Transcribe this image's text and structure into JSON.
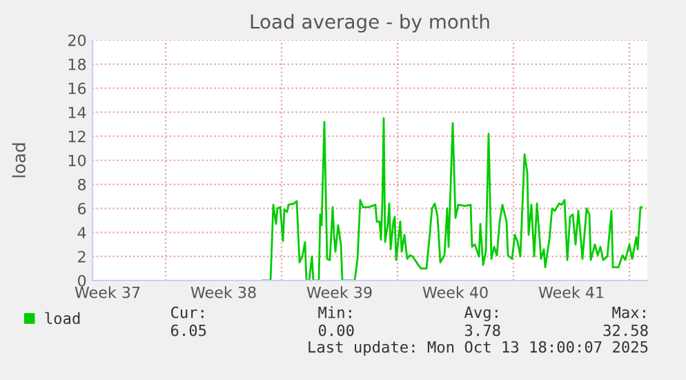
{
  "chart_data": {
    "type": "line",
    "title": "Load average - by month",
    "ylabel": "load",
    "x": [
      "2025-09-20T20:00",
      "2025-09-21T08:00",
      "2025-09-21T12:00",
      "2025-09-21T16:00",
      "2025-09-21T18:00",
      "2025-09-21T22:00",
      "2025-09-22T02:00",
      "2025-09-22T04:00",
      "2025-09-22T08:00",
      "2025-09-22T10:00",
      "2025-09-22T18:00",
      "2025-09-22T22:00",
      "2025-09-23T02:00",
      "2025-09-23T06:00",
      "2025-09-23T10:00",
      "2025-09-23T12:00",
      "2025-09-23T16:00",
      "2025-09-23T20:00",
      "2025-09-23T22:00",
      "2025-09-24T06:00",
      "2025-09-24T08:00",
      "2025-09-24T10:00",
      "2025-09-24T14:00",
      "2025-09-24T18:00",
      "2025-09-24T22:00",
      "2025-09-25T02:00",
      "2025-09-25T04:00",
      "2025-09-25T06:00",
      "2025-09-25T10:00",
      "2025-09-25T14:00",
      "2025-09-25T16:00",
      "2025-09-26T10:00",
      "2025-09-26T14:00",
      "2025-09-26T18:00",
      "2025-09-26T22:00",
      "2025-09-27T06:00",
      "2025-09-27T16:00",
      "2025-09-27T18:00",
      "2025-09-27T22:00",
      "2025-09-28T00:00",
      "2025-09-28T02:00",
      "2025-09-28T04:00",
      "2025-09-28T06:00",
      "2025-09-28T10:00",
      "2025-09-28T12:00",
      "2025-09-28T14:00",
      "2025-09-28T18:00",
      "2025-09-28T20:00",
      "2025-09-28T22:00",
      "2025-09-29T02:00",
      "2025-09-29T04:00",
      "2025-09-29T06:00",
      "2025-09-29T10:00",
      "2025-09-29T14:00",
      "2025-09-29T18:00",
      "2025-09-29T22:00",
      "2025-09-30T06:00",
      "2025-09-30T10:00",
      "2025-09-30T18:00",
      "2025-09-30T22:00",
      "2025-10-01T02:00",
      "2025-10-01T06:00",
      "2025-10-01T10:00",
      "2025-10-01T14:00",
      "2025-10-01T20:00",
      "2025-10-02T00:00",
      "2025-10-02T02:00",
      "2025-10-02T08:00",
      "2025-10-02T12:00",
      "2025-10-02T16:00",
      "2025-10-03T02:00",
      "2025-10-03T10:00",
      "2025-10-03T12:00",
      "2025-10-03T16:00",
      "2025-10-03T22:00",
      "2025-10-04T00:00",
      "2025-10-04T04:00",
      "2025-10-04T08:00",
      "2025-10-04T12:00",
      "2025-10-04T16:00",
      "2025-10-04T20:00",
      "2025-10-05T00:00",
      "2025-10-05T04:00",
      "2025-10-05T08:00",
      "2025-10-05T14:00",
      "2025-10-05T16:00",
      "2025-10-05T22:00",
      "2025-10-06T02:00",
      "2025-10-06T06:00",
      "2025-10-06T10:00",
      "2025-10-06T16:00",
      "2025-10-06T20:00",
      "2025-10-06T22:00",
      "2025-10-07T02:00",
      "2025-10-07T06:00",
      "2025-10-07T10:00",
      "2025-10-07T16:00",
      "2025-10-07T20:00",
      "2025-10-07T22:00",
      "2025-10-08T04:00",
      "2025-10-08T08:00",
      "2025-10-08T12:00",
      "2025-10-08T18:00",
      "2025-10-08T22:00",
      "2025-10-09T02:00",
      "2025-10-09T06:00",
      "2025-10-09T10:00",
      "2025-10-09T14:00",
      "2025-10-09T18:00",
      "2025-10-09T22:00",
      "2025-10-10T04:00",
      "2025-10-10T10:00",
      "2025-10-10T14:00",
      "2025-10-10T16:00",
      "2025-10-10T22:00",
      "2025-10-11T02:00",
      "2025-10-11T06:00",
      "2025-10-11T10:00",
      "2025-10-11T16:00",
      "2025-10-11T22:00",
      "2025-10-12T00:00",
      "2025-10-12T08:00",
      "2025-10-12T14:00",
      "2025-10-12T18:00",
      "2025-10-13T00:00",
      "2025-10-13T04:00",
      "2025-10-13T10:00",
      "2025-10-13T12:00",
      "2025-10-13T16:00",
      "2025-10-13T18:00"
    ],
    "series": [
      {
        "name": "load",
        "color": "#00cc00",
        "values": [
          0,
          0,
          6.3,
          4.7,
          6.0,
          6.1,
          3.3,
          5.9,
          5.7,
          6.3,
          6.4,
          6.6,
          1.5,
          2.0,
          3.2,
          0,
          0,
          2.0,
          0,
          0,
          5.5,
          4.6,
          13.2,
          1.8,
          1.7,
          6.1,
          3.8,
          2.4,
          4.6,
          3.0,
          0,
          0,
          1.8,
          6.7,
          6.1,
          6.1,
          6.3,
          4.9,
          4.9,
          3.4,
          6.4,
          13.5,
          3.2,
          4.7,
          6.4,
          2.6,
          4.9,
          5.3,
          1.7,
          3.8,
          4.9,
          2.4,
          3.8,
          1.8,
          2.1,
          2.0,
          1.3,
          1.0,
          1.0,
          3.4,
          6.0,
          6.4,
          5.3,
          1.5,
          2.1,
          6.0,
          2.8,
          13.1,
          5.2,
          6.3,
          6.2,
          6.3,
          2.8,
          3.0,
          2.0,
          4.7,
          1.3,
          2.4,
          12.2,
          1.8,
          2.8,
          2.1,
          4.9,
          6.3,
          4.9,
          2.1,
          1.8,
          3.8,
          3.2,
          2.0,
          10.5,
          9.0,
          3.8,
          6.3,
          2.0,
          6.4,
          1.8,
          2.6,
          1.1,
          3.4,
          6.0,
          5.8,
          6.4,
          6.3,
          6.7,
          1.7,
          5.3,
          5.5,
          3.0,
          5.8,
          1.8,
          6.0,
          5.5,
          1.7,
          3.0,
          2.1,
          2.8,
          1.7,
          2.0,
          5.8,
          1.1,
          1.1,
          2.1,
          1.7,
          3.0,
          1.8,
          3.6,
          2.6,
          6.1,
          6.1
        ]
      }
    ],
    "xlim": [
      "2025-09-10T14:00",
      "2025-10-14T02:00"
    ],
    "xticks": [
      {
        "value": "2025-09-11T12:00",
        "label": "Week 37"
      },
      {
        "value": "2025-09-18T12:00",
        "label": "Week 38"
      },
      {
        "value": "2025-09-25T12:00",
        "label": "Week 39"
      },
      {
        "value": "2025-10-02T12:00",
        "label": "Week 40"
      },
      {
        "value": "2025-10-09T12:00",
        "label": "Week 41"
      }
    ],
    "ylim": [
      0,
      20
    ],
    "yticks": [
      0,
      2,
      4,
      6,
      8,
      10,
      12,
      14,
      16,
      18,
      20
    ],
    "ref_lines": [
      {
        "axis": "x",
        "value": "2025-09-15",
        "color": "#e8a0a0",
        "line_style": "dotted"
      },
      {
        "axis": "x",
        "value": "2025-09-22",
        "color": "#e8a0a0",
        "line_style": "dotted"
      },
      {
        "axis": "x",
        "value": "2025-09-29",
        "color": "#e8a0a0",
        "line_style": "dotted"
      },
      {
        "axis": "x",
        "value": "2025-10-06",
        "color": "#e8a0a0",
        "line_style": "dotted"
      },
      {
        "axis": "x",
        "value": "2025-10-13",
        "color": "#e8a0a0",
        "line_style": "dotted"
      }
    ],
    "grid": "y",
    "legend": "bottom",
    "line_style": "solid",
    "marker": "none",
    "annotations": [
      "Cur:",
      "Min:",
      "Avg:",
      "Max:",
      "6.05",
      "0.00",
      "3.78",
      "32.58",
      "Last update: Mon Oct 13 18:00:07 2025"
    ]
  }
}
